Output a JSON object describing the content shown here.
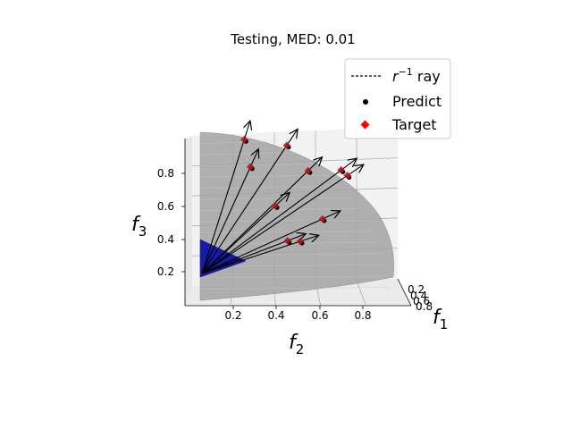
{
  "chart_data": {
    "type": "scatter",
    "title": "Testing, MED: 0.01",
    "axes": {
      "x": {
        "label": "f",
        "subscript": "1",
        "ticks": [
          "0.2",
          "0.4",
          "0.6",
          "0.8"
        ]
      },
      "y": {
        "label": "f",
        "subscript": "2",
        "ticks": [
          "0.2",
          "0.4",
          "0.6",
          "0.8"
        ]
      },
      "z": {
        "label": "f",
        "subscript": "3",
        "ticks": [
          "0.2",
          "0.4",
          "0.6",
          "0.8"
        ]
      },
      "range": [
        0,
        1
      ]
    },
    "legend": {
      "position": "top-right",
      "entries": [
        {
          "label_base": "r",
          "label_sup": "−1",
          "label_tail": " ray",
          "marker": "dashed-line",
          "color": "#000000"
        },
        {
          "label_base": "Predict",
          "label_sup": "",
          "label_tail": "",
          "marker": "circle",
          "color": "#000000"
        },
        {
          "label_base": "Target",
          "label_sup": "",
          "label_tail": "",
          "marker": "diamond",
          "color": "#ff0000"
        }
      ]
    },
    "colors": {
      "surface": "#9a9a9a",
      "simplex": "#1a1aa8",
      "ray": "#000000",
      "predict": "#000000",
      "target": "#ff0000"
    },
    "points": [
      {
        "f1": 0.15,
        "f2": 0.25,
        "f3": 0.88
      },
      {
        "f1": 0.2,
        "f2": 0.28,
        "f3": 0.72
      },
      {
        "f1": 0.25,
        "f2": 0.45,
        "f3": 0.85
      },
      {
        "f1": 0.3,
        "f2": 0.55,
        "f3": 0.7
      },
      {
        "f1": 0.22,
        "f2": 0.7,
        "f3": 0.69
      },
      {
        "f1": 0.25,
        "f2": 0.73,
        "f3": 0.66
      },
      {
        "f1": 0.35,
        "f2": 0.4,
        "f3": 0.5
      },
      {
        "f1": 0.4,
        "f2": 0.62,
        "f3": 0.42
      },
      {
        "f1": 0.45,
        "f2": 0.46,
        "f3": 0.3
      },
      {
        "f1": 0.5,
        "f2": 0.52,
        "f3": 0.3
      }
    ]
  }
}
